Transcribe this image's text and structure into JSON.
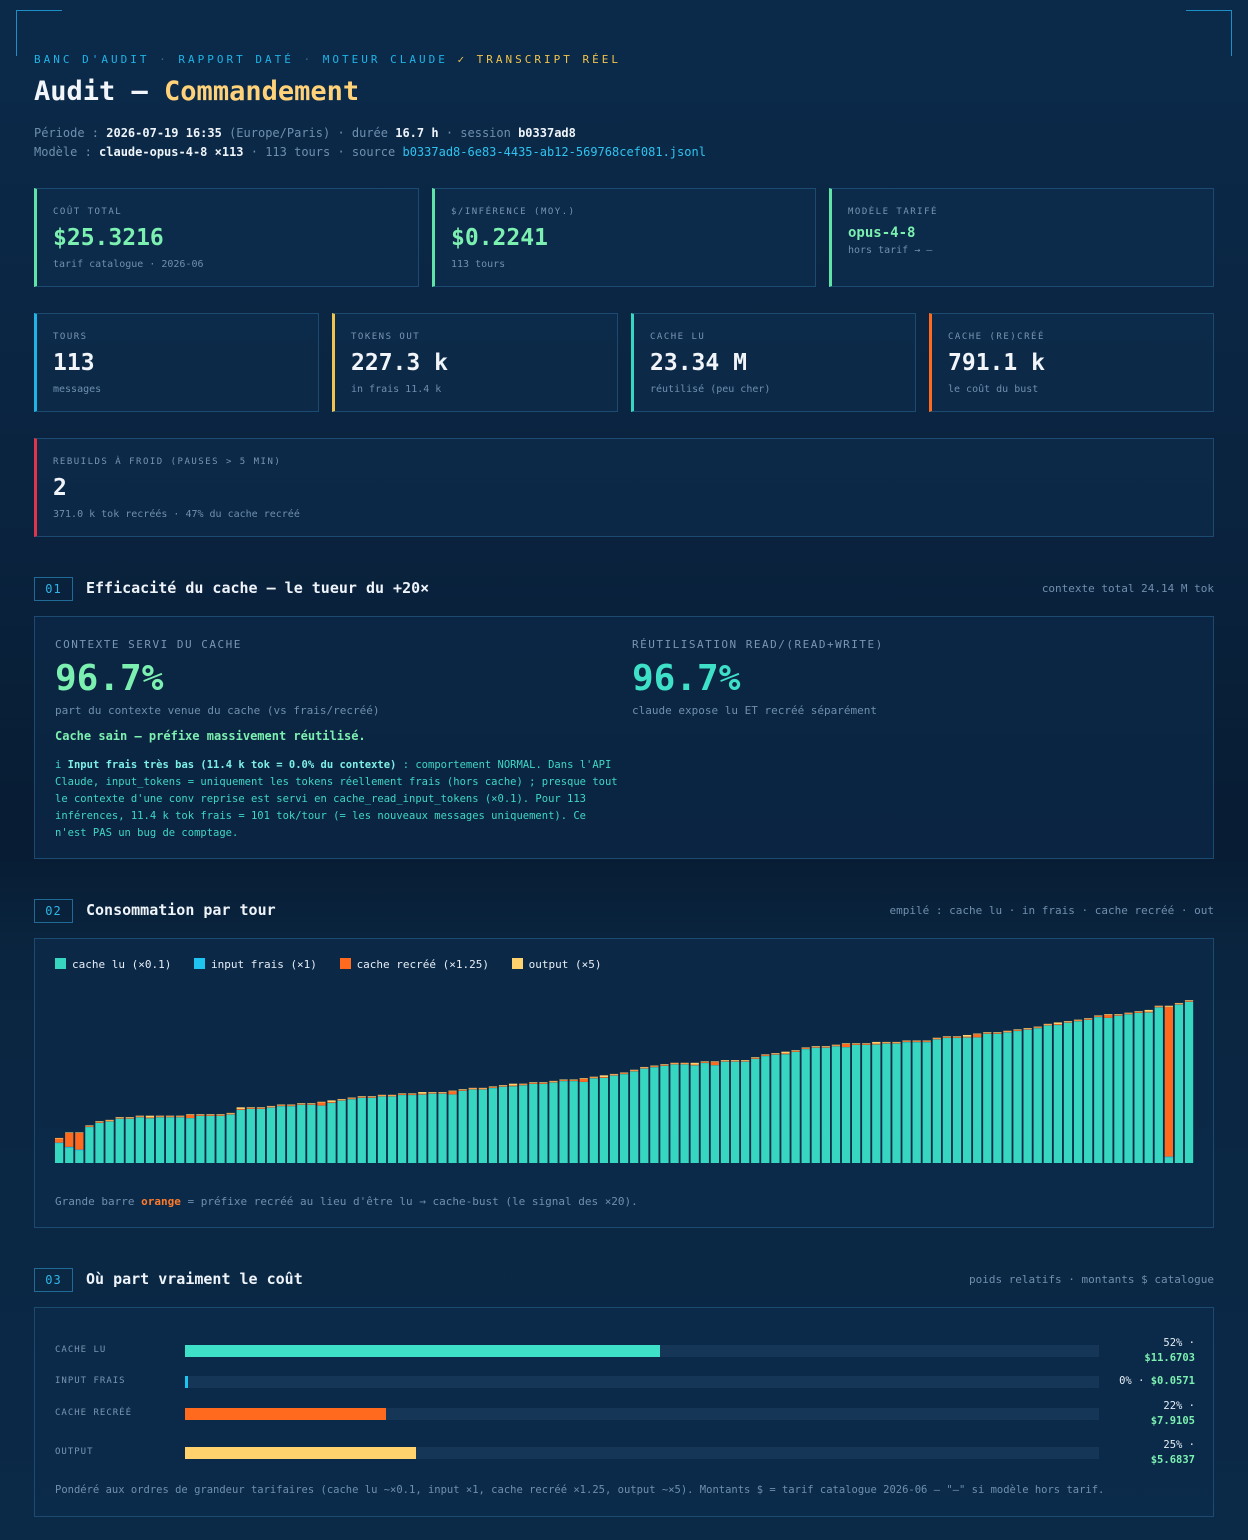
{
  "header": {
    "crumb": [
      "BANC D'AUDIT",
      "RAPPORT DATÉ",
      "MOTEUR CLAUDE",
      "✓ TRANSCRIPT RÉEL"
    ],
    "title_prefix": "Audit — ",
    "title_highlight": "Commandement",
    "periode_label": "Période : ",
    "periode_value": "2026-07-19 16:35",
    "tz": " (Europe/Paris) · durée ",
    "duree": "16.7 h",
    "session_label": " · session ",
    "session": "b0337ad8",
    "modele_label": "Modèle : ",
    "modele": "claude-opus-4-8 ×113",
    "tours_text": " · 113 tours · source ",
    "source": "b0337ad8-6e83-4435-ab12-569768cef081.jsonl"
  },
  "cards_row1": [
    {
      "label": "COÛT TOTAL",
      "value": "$25.3216",
      "sub": "tarif catalogue · 2026-06",
      "accent": "#5fe3a6"
    },
    {
      "label": "$/INFÉRENCE (MOY.)",
      "value": "$0.2241",
      "sub": "113 tours",
      "accent": "#5fe3a6"
    },
    {
      "label": "MODÈLE TARIFÉ",
      "value": "opus-4-8",
      "sub": "hors tarif → —",
      "accent": "#5fe3a6"
    }
  ],
  "cards_row2": [
    {
      "label": "TOURS",
      "value": "113",
      "sub": "messages",
      "accent": "#1fb3e6"
    },
    {
      "label": "TOKENS OUT",
      "value": "227.3 k",
      "sub": "in frais 11.4 k",
      "accent": "#f0c44c"
    },
    {
      "label": "CACHE LU",
      "value": "23.34 M",
      "sub": "réutilisé (peu cher)",
      "accent": "#36d6c0"
    },
    {
      "label": "CACHE (RE)CRÉÉ",
      "value": "791.1 k",
      "sub": "le coût du bust",
      "accent": "#ff6a1f"
    }
  ],
  "card_rebuild": {
    "label": "REBUILDS À FROID (PAUSES > 5 MIN)",
    "value": "2",
    "sub": "371.0 k tok recréés · 47% du cache recréé",
    "accent": "#e0344a"
  },
  "sec1": {
    "num": "01",
    "title": "Efficacité du cache — le tueur du +20×",
    "note": "contexte total 24.14 M tok",
    "left_label": "CONTEXTE SERVI DU CACHE",
    "left_value": "96.7%",
    "left_sub": "part du contexte venue du cache (vs frais/recréé)",
    "right_label": "RÉUTILISATION READ/(READ+WRITE)",
    "right_value": "96.7%",
    "right_sub": "claude expose lu ET recréé séparément",
    "sain": "Cache sain — préfixe massivement réutilisé.",
    "note_icon": "i ",
    "note_bold": "Input frais très bas (11.4 k tok = 0.0% du contexte)",
    "note_text": " : comportement NORMAL. Dans l'API Claude, input_tokens = uniquement les tokens réellement frais (hors cache) ; presque tout le contexte d'une conv reprise est servi en cache_read_input_tokens (×0.1). Pour 113 inférences, 11.4 k tok frais = 101 tok/tour (= les nouveaux messages uniquement). Ce n'est PAS un bug de comptage."
  },
  "sec2": {
    "num": "02",
    "title": "Consommation par tour",
    "note": "empilé : cache lu · in frais · cache recréé · out",
    "legend": [
      {
        "name": "cache lu (×0.1)",
        "color": "#36d6c0"
      },
      {
        "name": "input frais (×1)",
        "color": "#1fc3f0"
      },
      {
        "name": "cache recréé (×1.25)",
        "color": "#ff6a1f"
      },
      {
        "name": "output (×5)",
        "color": "#ffd26e"
      }
    ],
    "caption_pre": "Grande barre ",
    "caption_orange": "orange",
    "caption_post": " = préfixe recréé au lieu d'être lu → cache-bust (le signal des ×20)."
  },
  "chart_data": {
    "type": "bar",
    "stacked": true,
    "x_count": 113,
    "series": [
      {
        "name": "cache lu (×0.1)",
        "color": "#36d6c0"
      },
      {
        "name": "input frais (×1)",
        "color": "#1fc3f0"
      },
      {
        "name": "cache recréé (×1.25)",
        "color": "#ff6a1f"
      },
      {
        "name": "output (×5)",
        "color": "#ffd26e"
      }
    ],
    "totals": [
      18,
      22,
      22,
      27,
      30,
      31,
      33,
      33,
      34,
      34,
      34,
      34,
      34,
      35,
      35,
      35,
      35,
      36,
      40,
      40,
      40,
      41,
      42,
      42,
      43,
      43,
      44,
      45,
      46,
      47,
      48,
      48,
      49,
      49,
      50,
      50,
      51,
      51,
      51,
      52,
      53,
      54,
      54,
      55,
      56,
      57,
      57,
      58,
      58,
      59,
      60,
      60,
      61,
      62,
      63,
      64,
      65,
      67,
      69,
      70,
      71,
      72,
      72,
      72,
      73,
      73,
      74,
      74,
      74,
      76,
      78,
      79,
      80,
      81,
      83,
      84,
      84,
      85,
      86,
      86,
      86,
      87,
      87,
      87,
      88,
      88,
      88,
      90,
      91,
      91,
      92,
      93,
      94,
      94,
      95,
      96,
      97,
      98,
      100,
      101,
      102,
      103,
      104,
      106,
      107,
      107,
      108,
      109,
      110,
      113,
      113,
      115,
      117
    ],
    "bust_index": [
      0,
      1,
      2,
      110
    ],
    "bust_values": [
      3,
      10,
      12,
      112
    ],
    "ylim": [
      0,
      120
    ]
  },
  "sec3": {
    "num": "03",
    "title": "Où part vraiment le coût",
    "note": "poids relatifs · montants $ catalogue",
    "rows": [
      {
        "label": "CACHE LU",
        "pct": 52,
        "pct_text": "52% ·",
        "money": "$11.6703",
        "color": "#3fe0c8"
      },
      {
        "label": "INPUT FRAIS",
        "pct": 0.3,
        "pct_text": "0% ·",
        "money": "$0.0571",
        "color": "#1fc3f0"
      },
      {
        "label": "CACHE RECRÉÉ",
        "pct": 22,
        "pct_text": "22% ·",
        "money": "$7.9105",
        "color": "#ff6a1f"
      },
      {
        "label": "OUTPUT",
        "pct": 25.3,
        "pct_text": "25% ·",
        "money": "$5.6837",
        "color": "#ffd26e"
      }
    ],
    "foot": "Pondéré aux ordres de grandeur tarifaires (cache lu ~×0.1, input ×1, cache recréé ×1.25, output ~×5). Montants $ = tarif catalogue 2026-06 — \"—\" si modèle hors tarif."
  }
}
